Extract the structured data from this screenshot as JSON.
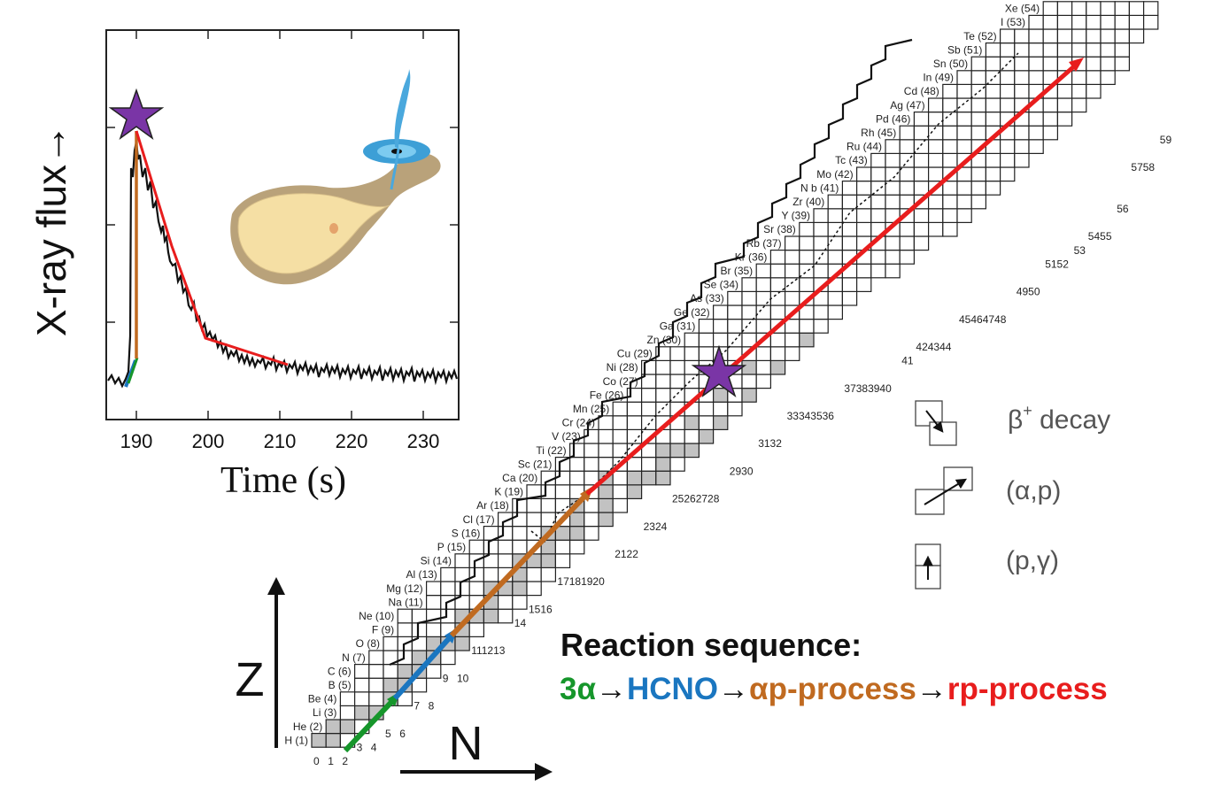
{
  "lightcurve": {
    "ylabel": "X-ray flux→",
    "xlabel": "Time (s)",
    "xticks": [
      "190",
      "200",
      "210",
      "220",
      "230"
    ]
  },
  "chart": {
    "z_label": "Z",
    "n_label": "N",
    "elements": [
      {
        "z": 1,
        "label": "H (1)",
        "nmin": 0,
        "nmax": 2,
        "stable": [
          0,
          1
        ]
      },
      {
        "z": 2,
        "label": "He (2)",
        "nmin": 1,
        "nmax": 3,
        "stable": [
          1,
          2
        ]
      },
      {
        "z": 3,
        "label": "Li (3)",
        "nmin": 2,
        "nmax": 4,
        "stable": [
          3,
          4
        ]
      },
      {
        "z": 4,
        "label": "Be (4)",
        "nmin": 2,
        "nmax": 6,
        "stable": [
          5
        ]
      },
      {
        "z": 5,
        "label": "B (5)",
        "nmin": 3,
        "nmax": 7,
        "stable": [
          5,
          6
        ]
      },
      {
        "z": 6,
        "label": "C (6)",
        "nmin": 3,
        "nmax": 8,
        "stable": [
          6,
          7
        ]
      },
      {
        "z": 7,
        "label": "N (7)",
        "nmin": 4,
        "nmax": 9,
        "stable": [
          7,
          8
        ]
      },
      {
        "z": 8,
        "label": "O (8)",
        "nmin": 5,
        "nmax": 10,
        "stable": [
          8,
          9,
          10
        ]
      },
      {
        "z": 9,
        "label": "F (9)",
        "nmin": 6,
        "nmax": 11,
        "stable": [
          10
        ]
      },
      {
        "z": 10,
        "label": "Ne (10)",
        "nmin": 6,
        "nmax": 13,
        "stable": [
          10,
          11,
          12
        ]
      },
      {
        "z": 11,
        "label": "Na (11)",
        "nmin": 8,
        "nmax": 14,
        "stable": [
          12
        ]
      },
      {
        "z": 12,
        "label": "Mg (12)",
        "nmin": 8,
        "nmax": 15,
        "stable": [
          12,
          13,
          14
        ]
      },
      {
        "z": 13,
        "label": "Al (13)",
        "nmin": 9,
        "nmax": 16,
        "stable": [
          14
        ]
      },
      {
        "z": 14,
        "label": "Si (14)",
        "nmin": 10,
        "nmax": 17,
        "stable": [
          14,
          15,
          16
        ]
      },
      {
        "z": 15,
        "label": "P (15)",
        "nmin": 11,
        "nmax": 18,
        "stable": [
          16
        ]
      },
      {
        "z": 16,
        "label": "S (16)",
        "nmin": 12,
        "nmax": 19,
        "stable": [
          16,
          17,
          18,
          20
        ]
      },
      {
        "z": 17,
        "label": "Cl (17)",
        "nmin": 13,
        "nmax": 20,
        "stable": [
          18,
          20
        ]
      },
      {
        "z": 18,
        "label": "Ar (18)",
        "nmin": 14,
        "nmax": 21,
        "stable": [
          18,
          20,
          22
        ]
      },
      {
        "z": 19,
        "label": "K (19)",
        "nmin": 15,
        "nmax": 22,
        "stable": [
          20,
          22
        ]
      },
      {
        "z": 20,
        "label": "Ca (20)",
        "nmin": 16,
        "nmax": 24,
        "stable": [
          20,
          22,
          23,
          24
        ]
      },
      {
        "z": 21,
        "label": "Sc (21)",
        "nmin": 17,
        "nmax": 25,
        "stable": [
          24
        ]
      },
      {
        "z": 22,
        "label": "Ti (22)",
        "nmin": 18,
        "nmax": 26,
        "stable": [
          24,
          25,
          26,
          27,
          28
        ]
      },
      {
        "z": 23,
        "label": "V (23)",
        "nmin": 19,
        "nmax": 27,
        "stable": [
          27,
          28
        ]
      },
      {
        "z": 24,
        "label": "Cr (24)",
        "nmin": 20,
        "nmax": 28,
        "stable": [
          26,
          28,
          29,
          30
        ]
      },
      {
        "z": 25,
        "label": "Mn (25)",
        "nmin": 21,
        "nmax": 29,
        "stable": [
          30
        ]
      },
      {
        "z": 26,
        "label": "Fe (26)",
        "nmin": 22,
        "nmax": 30,
        "stable": [
          28,
          30,
          31,
          32
        ]
      },
      {
        "z": 27,
        "label": "Co (27)",
        "nmin": 23,
        "nmax": 31,
        "stable": [
          32
        ]
      },
      {
        "z": 28,
        "label": "Ni (28)",
        "nmin": 23,
        "nmax": 32,
        "stable": [
          30,
          32,
          33,
          34,
          36
        ]
      },
      {
        "z": 29,
        "label": "Cu (29)",
        "nmin": 24,
        "nmax": 33,
        "stable": [
          34,
          36
        ]
      },
      {
        "z": 30,
        "label": "Zn (30)",
        "nmin": 26,
        "nmax": 34,
        "stable": [
          34,
          36,
          37,
          38,
          40
        ]
      },
      {
        "z": 31,
        "label": "Ga (31)",
        "nmin": 27,
        "nmax": 35,
        "stable": [
          38,
          40
        ]
      },
      {
        "z": 32,
        "label": "Ge (32)",
        "nmin": 28,
        "nmax": 36,
        "stable": [
          38,
          40,
          41,
          42,
          44
        ]
      },
      {
        "z": 33,
        "label": "As (33)",
        "nmin": 29,
        "nmax": 37,
        "stable": [
          42
        ]
      },
      {
        "z": 34,
        "label": "Se (34)",
        "nmin": 30,
        "nmax": 38,
        "stable": [
          40,
          42,
          43,
          44,
          46,
          48
        ]
      },
      {
        "z": 35,
        "label": "Br (35)",
        "nmin": 31,
        "nmax": 40,
        "stable": [
          44,
          46
        ]
      },
      {
        "z": 36,
        "label": "Kr (36)",
        "nmin": 32,
        "nmax": 41,
        "stable": [
          42,
          44,
          46,
          47,
          48,
          50
        ]
      },
      {
        "z": 37,
        "label": "Rb (37)",
        "nmin": 33,
        "nmax": 42,
        "stable": [
          48
        ]
      },
      {
        "z": 38,
        "label": "Sr (38)",
        "nmin": 34,
        "nmax": 44,
        "stable": [
          46,
          48,
          49,
          50
        ]
      },
      {
        "z": 39,
        "label": "Y (39)",
        "nmin": 35,
        "nmax": 45,
        "stable": [
          50
        ]
      },
      {
        "z": 40,
        "label": "Zr (40)",
        "nmin": 36,
        "nmax": 46,
        "stable": [
          50,
          51,
          52,
          54,
          56
        ]
      },
      {
        "z": 41,
        "label": "N b (41)",
        "nmin": 37,
        "nmax": 47,
        "stable": [
          52
        ]
      },
      {
        "z": 42,
        "label": "Mo (42)",
        "nmin": 38,
        "nmax": 48,
        "stable": [
          50,
          52,
          53,
          54,
          55,
          56
        ]
      },
      {
        "z": 43,
        "label": "Tc (43)",
        "nmin": 39,
        "nmax": 49,
        "stable": []
      },
      {
        "z": 44,
        "label": "Ru (44)",
        "nmin": 40,
        "nmax": 50,
        "stable": [
          52,
          54,
          55,
          56,
          57,
          58
        ]
      },
      {
        "z": 45,
        "label": "Rh (45)",
        "nmin": 41,
        "nmax": 51,
        "stable": [
          58
        ]
      },
      {
        "z": 46,
        "label": "Pd (46)",
        "nmin": 42,
        "nmax": 52,
        "stable": [
          56,
          58,
          59
        ]
      },
      {
        "z": 47,
        "label": "Ag (47)",
        "nmin": 43,
        "nmax": 53,
        "stable": []
      },
      {
        "z": 48,
        "label": "Cd (48)",
        "nmin": 44,
        "nmax": 54,
        "stable": []
      },
      {
        "z": 49,
        "label": "In (49)",
        "nmin": 45,
        "nmax": 55,
        "stable": []
      },
      {
        "z": 50,
        "label": "Sn (50)",
        "nmin": 46,
        "nmax": 56,
        "stable": []
      },
      {
        "z": 51,
        "label": "Sb (51)",
        "nmin": 47,
        "nmax": 56,
        "stable": []
      },
      {
        "z": 52,
        "label": "Te (52)",
        "nmin": 48,
        "nmax": 57,
        "stable": []
      },
      {
        "z": 53,
        "label": "I (53)",
        "nmin": 50,
        "nmax": 58,
        "stable": []
      },
      {
        "z": 54,
        "label": "Xe (54)",
        "nmin": 51,
        "nmax": 58,
        "stable": []
      }
    ],
    "n_labels": [
      {
        "text": "0",
        "n": 0,
        "z": 0
      },
      {
        "text": "1",
        "n": 1,
        "z": 0
      },
      {
        "text": "2",
        "n": 2,
        "z": 0
      },
      {
        "text": "3",
        "n": 3,
        "z": 1
      },
      {
        "text": "4",
        "n": 4,
        "z": 1
      },
      {
        "text": "5",
        "n": 5,
        "z": 2
      },
      {
        "text": "6",
        "n": 6,
        "z": 2
      },
      {
        "text": "7",
        "n": 7,
        "z": 4
      },
      {
        "text": "8",
        "n": 8,
        "z": 4
      },
      {
        "text": "9",
        "n": 9,
        "z": 6
      },
      {
        "text": "10",
        "n": 10,
        "z": 6
      },
      {
        "text": "111213",
        "n": 11,
        "z": 8
      },
      {
        "text": "14",
        "n": 14,
        "z": 10
      },
      {
        "text": "1516",
        "n": 15,
        "z": 11
      },
      {
        "text": "17181920",
        "n": 17,
        "z": 13
      },
      {
        "text": "2122",
        "n": 21,
        "z": 15
      },
      {
        "text": "2324",
        "n": 23,
        "z": 17
      },
      {
        "text": "25262728",
        "n": 25,
        "z": 19
      },
      {
        "text": "2930",
        "n": 29,
        "z": 21
      },
      {
        "text": "3132",
        "n": 31,
        "z": 23
      },
      {
        "text": "33343536",
        "n": 33,
        "z": 25
      },
      {
        "text": "37383940",
        "n": 37,
        "z": 27
      },
      {
        "text": "41",
        "n": 41,
        "z": 29
      },
      {
        "text": "424344",
        "n": 42,
        "z": 30
      },
      {
        "text": "45464748",
        "n": 45,
        "z": 32
      },
      {
        "text": "4950",
        "n": 49,
        "z": 34
      },
      {
        "text": "5152",
        "n": 51,
        "z": 36
      },
      {
        "text": "53",
        "n": 53,
        "z": 37
      },
      {
        "text": "5455",
        "n": 54,
        "z": 38
      },
      {
        "text": "56",
        "n": 56,
        "z": 40
      },
      {
        "text": "5758",
        "n": 57,
        "z": 43
      },
      {
        "text": "59",
        "n": 59,
        "z": 45
      }
    ]
  },
  "legend": {
    "items": [
      {
        "symbol": "β",
        "sup": "+",
        "label": " decay"
      },
      {
        "label": "(α,p)"
      },
      {
        "label": "(p,γ)"
      }
    ]
  },
  "reaction": {
    "title": "Reaction sequence:",
    "steps": [
      {
        "text": "3α",
        "color": "#16962b"
      },
      {
        "text": "→",
        "color": "#111111"
      },
      {
        "text": "HCNO",
        "color": "#1a76c0"
      },
      {
        "text": "→",
        "color": "#111111"
      },
      {
        "text": "αp-process",
        "color": "#c06a20"
      },
      {
        "text": "→",
        "color": "#111111"
      },
      {
        "text": "rp-process",
        "color": "#e81d1d"
      }
    ]
  },
  "colors": {
    "green": "#16962b",
    "blue": "#1a76c0",
    "orange": "#c06a20",
    "red": "#e81d1d",
    "star": "#7a35a6",
    "stable_fill": "#c2c2c2"
  }
}
